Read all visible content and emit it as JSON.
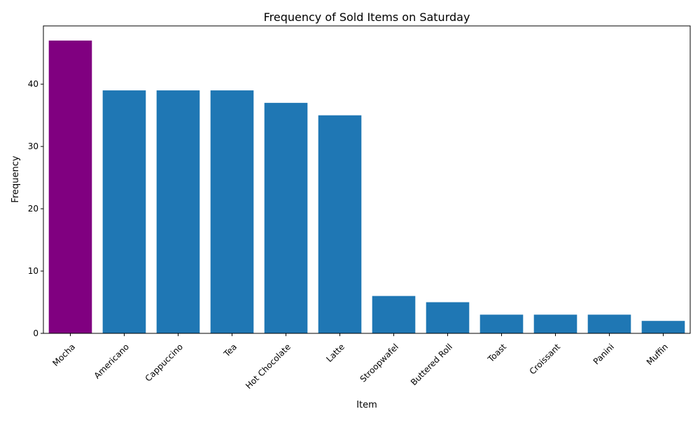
{
  "chart_data": {
    "type": "bar",
    "title": "Frequency of Sold Items on Saturday",
    "xlabel": "Item",
    "ylabel": "Frequency",
    "categories": [
      "Mocha",
      "Americano",
      "Cappuccino",
      "Tea",
      "Hot Chocolate",
      "Latte",
      "Stroopwafel",
      "Buttered Roll",
      "Toast",
      "Croissant",
      "Panini",
      "Muffin"
    ],
    "values": [
      47,
      39,
      39,
      39,
      37,
      35,
      6,
      5,
      3,
      3,
      3,
      2
    ],
    "highlight_index": 0,
    "highlight_color": "#800080",
    "bar_color": "#1f77b4",
    "ylim": [
      0,
      49.35
    ],
    "yticks": [
      0,
      10,
      20,
      30,
      40
    ],
    "grid": false,
    "legend": "none"
  }
}
